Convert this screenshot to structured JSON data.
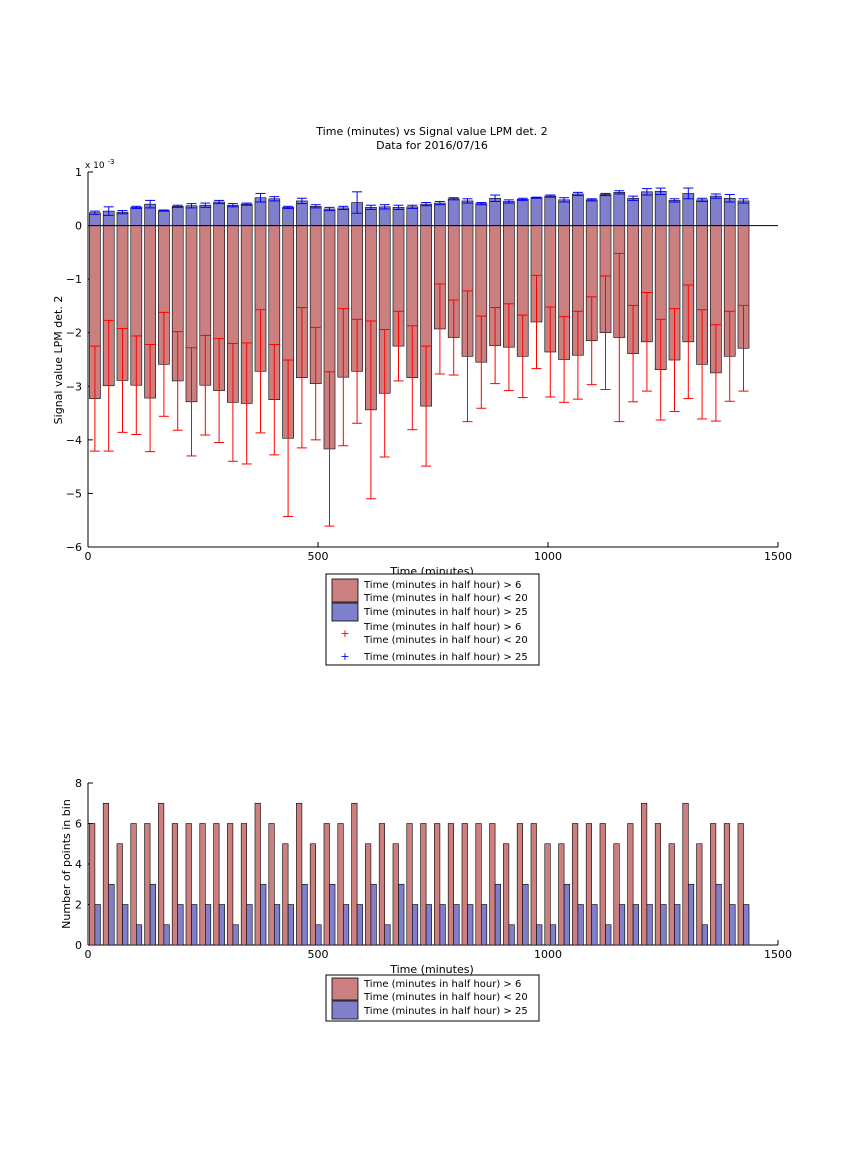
{
  "chart_data": [
    {
      "type": "bar",
      "title": "Time (minutes) vs Signal value LPM det. 2",
      "subtitle": "Data for 2016/07/16",
      "xlabel": "Time (minutes)",
      "ylabel": "Signal value LPM det. 2",
      "y_exponent_label": "x 10",
      "y_exponent_power": "-3",
      "xlim": [
        0,
        1500
      ],
      "ylim": [
        -6,
        1
      ],
      "xticks": [
        "0",
        "500",
        "1000",
        "1500"
      ],
      "yticks": [
        "−6",
        "−5",
        "−4",
        "−3",
        "−2",
        "−1",
        "0",
        "1"
      ],
      "grid": false,
      "legend_placement": "below",
      "legend": [
        {
          "type": "bar",
          "color": "#cc7f7f",
          "lines": [
            "Time (minutes in half hour) > 6",
            "Time (minutes in half hour) < 20"
          ]
        },
        {
          "type": "bar",
          "color": "#7f7fcc",
          "lines": [
            "Time (minutes in half hour) > 25"
          ]
        },
        {
          "type": "marker",
          "color": "#ff0000",
          "lines": [
            "Time (minutes in half hour) > 6",
            "Time (minutes in half hour) < 20"
          ]
        },
        {
          "type": "marker",
          "color": "#0000ff",
          "lines": [
            "Time (minutes in half hour) > 25"
          ]
        }
      ],
      "x": [
        15,
        45,
        75,
        105,
        135,
        165,
        195,
        225,
        255,
        285,
        315,
        345,
        375,
        405,
        435,
        465,
        495,
        525,
        555,
        585,
        615,
        645,
        675,
        705,
        735,
        765,
        795,
        825,
        855,
        885,
        915,
        945,
        975,
        1005,
        1035,
        1065,
        1095,
        1125,
        1155,
        1185,
        1215,
        1245,
        1275,
        1305,
        1335,
        1365,
        1395,
        1425
      ],
      "series": [
        {
          "color": "#cc7f7f",
          "error_color": "#ff0000",
          "values": [
            -3.23,
            -2.99,
            -2.89,
            -2.98,
            -3.22,
            -2.59,
            -2.9,
            -3.29,
            -2.98,
            -3.08,
            -3.3,
            -3.32,
            -2.72,
            -3.25,
            -3.97,
            -2.84,
            -2.95,
            -4.17,
            -2.83,
            -2.72,
            -3.44,
            -3.13,
            -2.25,
            -2.84,
            -3.37,
            -1.93,
            -2.09,
            -2.44,
            -2.55,
            -2.24,
            -2.27,
            -2.44,
            -1.8,
            -2.36,
            -2.5,
            -2.42,
            -2.15,
            -2.0,
            -2.09,
            -2.39,
            -2.17,
            -2.69,
            -2.51,
            -2.17,
            -2.59,
            -2.75,
            -2.44,
            -2.29
          ],
          "errors": [
            0.98,
            1.22,
            0.97,
            0.92,
            1.0,
            0.97,
            0.92,
            1.01,
            0.93,
            0.97,
            1.1,
            1.13,
            1.15,
            1.03,
            1.46,
            1.31,
            1.05,
            1.44,
            1.28,
            0.97,
            1.66,
            1.19,
            0.65,
            0.97,
            1.12,
            0.84,
            0.7,
            1.22,
            0.86,
            0.71,
            0.81,
            0.77,
            0.87,
            0.84,
            0.8,
            0.82,
            0.82,
            1.06,
            1.57,
            0.9,
            0.92,
            0.94,
            0.96,
            1.06,
            1.02,
            0.9,
            0.84,
            0.8
          ]
        },
        {
          "color": "#7f7fcc",
          "error_color": "#0000ff",
          "values": [
            0.24,
            0.27,
            0.25,
            0.34,
            0.4,
            0.28,
            0.36,
            0.37,
            0.38,
            0.44,
            0.38,
            0.4,
            0.52,
            0.5,
            0.34,
            0.46,
            0.36,
            0.31,
            0.33,
            0.43,
            0.34,
            0.35,
            0.34,
            0.35,
            0.4,
            0.42,
            0.5,
            0.46,
            0.41,
            0.51,
            0.45,
            0.49,
            0.52,
            0.55,
            0.48,
            0.59,
            0.48,
            0.58,
            0.62,
            0.51,
            0.63,
            0.64,
            0.47,
            0.6,
            0.48,
            0.55,
            0.51,
            0.46
          ],
          "errors": [
            0.03,
            0.08,
            0.03,
            0.02,
            0.07,
            0.01,
            0.02,
            0.04,
            0.04,
            0.03,
            0.03,
            0.02,
            0.08,
            0.04,
            0.02,
            0.05,
            0.03,
            0.03,
            0.03,
            0.2,
            0.04,
            0.04,
            0.04,
            0.03,
            0.03,
            0.03,
            0.02,
            0.04,
            0.02,
            0.06,
            0.03,
            0.02,
            0.01,
            0.02,
            0.04,
            0.03,
            0.02,
            0.02,
            0.03,
            0.04,
            0.06,
            0.06,
            0.03,
            0.1,
            0.03,
            0.04,
            0.07,
            0.04
          ]
        }
      ]
    },
    {
      "type": "bar",
      "xlabel": "Time (minutes)",
      "ylabel": "Number of points in bin",
      "xlim": [
        0,
        1500
      ],
      "ylim": [
        0,
        8
      ],
      "xticks": [
        "0",
        "500",
        "1000",
        "1500"
      ],
      "yticks": [
        "0",
        "2",
        "4",
        "6",
        "8"
      ],
      "grid": false,
      "legend_placement": "below",
      "legend": [
        {
          "type": "bar",
          "color": "#cc7f7f",
          "lines": [
            "Time (minutes in half hour) > 6",
            "Time (minutes in half hour) < 20"
          ]
        },
        {
          "type": "bar",
          "color": "#7f7fcc",
          "lines": [
            "Time (minutes in half hour) > 25"
          ]
        }
      ],
      "x": [
        15,
        45,
        75,
        105,
        135,
        165,
        195,
        225,
        255,
        285,
        315,
        345,
        375,
        405,
        435,
        465,
        495,
        525,
        555,
        585,
        615,
        645,
        675,
        705,
        735,
        765,
        795,
        825,
        855,
        885,
        915,
        945,
        975,
        1005,
        1035,
        1065,
        1095,
        1125,
        1155,
        1185,
        1215,
        1245,
        1275,
        1305,
        1335,
        1365,
        1395,
        1425
      ],
      "series": [
        {
          "color": "#cc7f7f",
          "values": [
            6,
            7,
            5,
            6,
            6,
            7,
            6,
            6,
            6,
            6,
            6,
            6,
            7,
            6,
            5,
            7,
            5,
            6,
            6,
            7,
            5,
            6,
            5,
            6,
            6,
            6,
            6,
            6,
            6,
            6,
            5,
            6,
            6,
            5,
            5,
            6,
            6,
            6,
            5,
            6,
            7,
            6,
            5,
            7,
            5,
            6,
            6,
            6
          ]
        },
        {
          "color": "#7f7fcc",
          "values": [
            2,
            3,
            2,
            1,
            3,
            1,
            2,
            2,
            2,
            2,
            1,
            2,
            3,
            2,
            2,
            3,
            1,
            3,
            2,
            2,
            3,
            1,
            3,
            2,
            2,
            2,
            2,
            2,
            2,
            3,
            1,
            3,
            1,
            1,
            3,
            2,
            2,
            1,
            2,
            2,
            2,
            2,
            2,
            3,
            1,
            3,
            2,
            2
          ]
        }
      ]
    }
  ]
}
